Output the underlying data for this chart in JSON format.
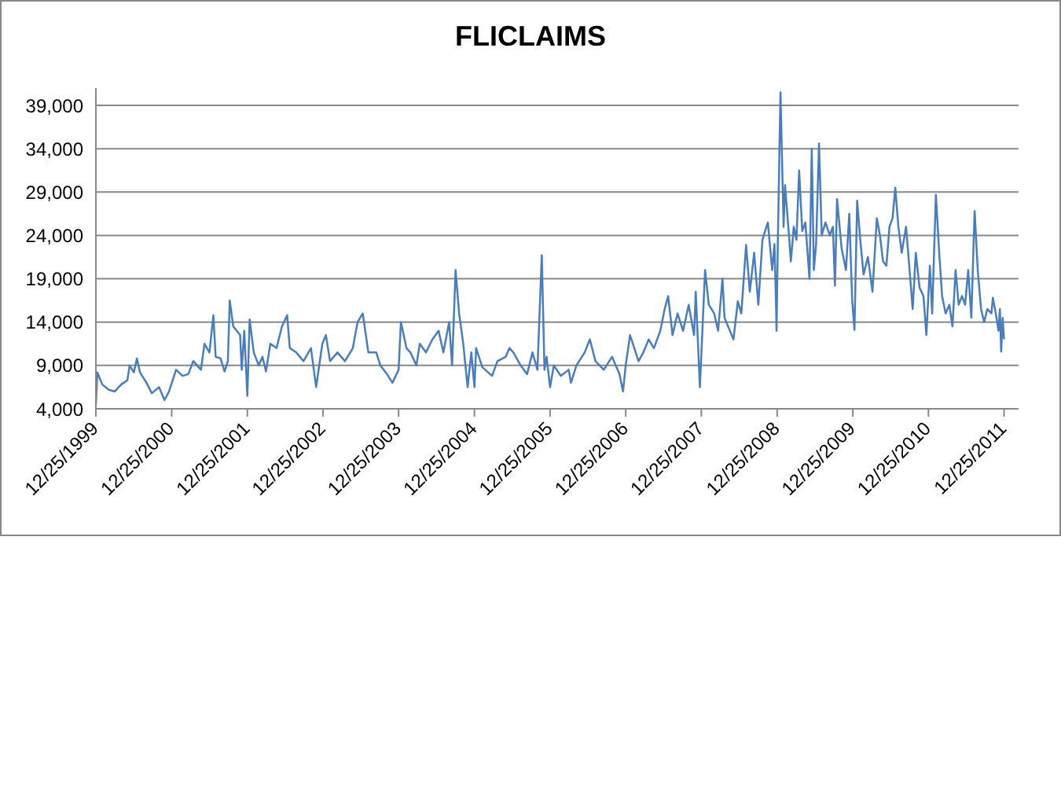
{
  "chart_data": {
    "type": "line",
    "title": "FLICLAIMS",
    "x": [
      "1999-12-25",
      "2000-01-01",
      "2000-01-25",
      "2000-02-25",
      "2000-03-25",
      "2000-04-25",
      "2000-05-25",
      "2000-06-05",
      "2000-06-25",
      "2000-07-10",
      "2000-07-25",
      "2000-08-25",
      "2000-09-20",
      "2000-10-25",
      "2000-11-20",
      "2000-12-12",
      "2001-01-15",
      "2001-02-15",
      "2001-03-15",
      "2001-04-08",
      "2001-05-15",
      "2001-06-01",
      "2001-06-25",
      "2001-07-14",
      "2001-07-25",
      "2001-08-18",
      "2001-09-06",
      "2001-09-22",
      "2001-10-01",
      "2001-10-18",
      "2001-11-20",
      "2001-11-28",
      "2001-12-10",
      "2001-12-25",
      "2002-01-05",
      "2002-01-25",
      "2002-02-18",
      "2002-03-08",
      "2002-03-25",
      "2002-04-15",
      "2002-05-15",
      "2002-06-10",
      "2002-07-05",
      "2002-07-18",
      "2002-08-18",
      "2002-09-22",
      "2002-10-28",
      "2002-11-22",
      "2002-12-22",
      "2003-01-08",
      "2003-01-28",
      "2003-03-05",
      "2003-04-10",
      "2003-05-18",
      "2003-06-10",
      "2003-07-05",
      "2003-08-01",
      "2003-09-08",
      "2003-09-28",
      "2003-10-30",
      "2003-11-25",
      "2003-12-25",
      "2004-01-05",
      "2004-02-01",
      "2004-02-20",
      "2004-03-20",
      "2004-04-05",
      "2004-05-05",
      "2004-06-05",
      "2004-07-05",
      "2004-07-28",
      "2004-08-25",
      "2004-09-08",
      "2004-09-25",
      "2004-10-12",
      "2004-11-01",
      "2004-11-22",
      "2004-12-10",
      "2004-12-25",
      "2005-01-02",
      "2005-02-01",
      "2005-03-20",
      "2005-04-15",
      "2005-05-25",
      "2005-06-12",
      "2005-07-01",
      "2005-08-05",
      "2005-09-05",
      "2005-10-01",
      "2005-10-25",
      "2005-11-15",
      "2005-11-28",
      "2005-12-08",
      "2005-12-25",
      "2006-01-12",
      "2006-02-15",
      "2006-03-25",
      "2006-04-05",
      "2006-05-01",
      "2006-06-10",
      "2006-07-05",
      "2006-08-01",
      "2006-09-10",
      "2006-10-20",
      "2006-11-25",
      "2006-12-12",
      "2006-12-25",
      "2007-01-15",
      "2007-02-25",
      "2007-03-20",
      "2007-04-15",
      "2007-05-10",
      "2007-06-10",
      "2007-07-01",
      "2007-07-18",
      "2007-08-08",
      "2007-09-01",
      "2007-09-28",
      "2007-10-25",
      "2007-11-20",
      "2007-11-28",
      "2007-12-18",
      "2008-01-12",
      "2008-01-30",
      "2008-02-25",
      "2008-03-15",
      "2008-04-05",
      "2008-04-15",
      "2008-05-28",
      "2008-06-18",
      "2008-07-05",
      "2008-07-28",
      "2008-08-15",
      "2008-09-05",
      "2008-09-25",
      "2008-10-15",
      "2008-11-10",
      "2008-12-01",
      "2008-12-12",
      "2008-12-20",
      "2008-12-22",
      "2008-12-28",
      "2009-01-10",
      "2009-01-25",
      "2009-02-01",
      "2009-02-20",
      "2009-03-01",
      "2009-03-15",
      "2009-03-28",
      "2009-04-10",
      "2009-04-25",
      "2009-05-10",
      "2009-05-30",
      "2009-06-10",
      "2009-06-20",
      "2009-07-01",
      "2009-07-15",
      "2009-07-28",
      "2009-08-15",
      "2009-09-05",
      "2009-09-20",
      "2009-09-30",
      "2009-10-10",
      "2009-11-01",
      "2009-11-22",
      "2009-12-08",
      "2009-12-22",
      "2010-01-02",
      "2010-01-15",
      "2010-01-30",
      "2010-02-15",
      "2010-03-08",
      "2010-03-30",
      "2010-04-20",
      "2010-05-05",
      "2010-05-20",
      "2010-06-05",
      "2010-06-20",
      "2010-07-05",
      "2010-07-18",
      "2010-08-02",
      "2010-08-18",
      "2010-09-08",
      "2010-09-25",
      "2010-10-10",
      "2010-10-25",
      "2010-11-12",
      "2010-12-01",
      "2010-12-15",
      "2011-01-01",
      "2011-01-12",
      "2011-01-30",
      "2011-02-15",
      "2011-03-01",
      "2011-03-18",
      "2011-04-05",
      "2011-04-20",
      "2011-05-05",
      "2011-05-20",
      "2011-06-05",
      "2011-06-20",
      "2011-07-05",
      "2011-07-20",
      "2011-08-05",
      "2011-08-20",
      "2011-09-05",
      "2011-09-20",
      "2011-10-05",
      "2011-10-25",
      "2011-11-01",
      "2011-11-15",
      "2011-11-28",
      "2011-12-05",
      "2011-12-11",
      "2011-12-18",
      "2011-12-25"
    ],
    "series": [
      {
        "color": "#4a7ebb",
        "values": [
          4500,
          8200,
          6800,
          6200,
          6000,
          6800,
          7300,
          9000,
          8200,
          9800,
          8200,
          7000,
          5800,
          6500,
          5000,
          6000,
          8500,
          7800,
          8000,
          9500,
          8500,
          11500,
          10500,
          14800,
          10000,
          9800,
          8300,
          9500,
          16500,
          13500,
          12500,
          8500,
          13000,
          5500,
          14300,
          10500,
          9000,
          10000,
          8300,
          11500,
          11000,
          13500,
          14800,
          11000,
          10500,
          9500,
          11000,
          6500,
          11500,
          12500,
          9500,
          10500,
          9500,
          11000,
          14000,
          15000,
          10500,
          10500,
          9000,
          8000,
          7000,
          8500,
          14000,
          11000,
          10500,
          9000,
          11500,
          10500,
          12000,
          13000,
          10500,
          14000,
          9000,
          20000,
          15000,
          11500,
          6500,
          10500,
          6500,
          11000,
          8800,
          7800,
          9500,
          10000,
          11000,
          10500,
          9000,
          8000,
          10500,
          8500,
          21700,
          8500,
          10000,
          6500,
          9000,
          7800,
          8500,
          7000,
          9000,
          10500,
          12000,
          9500,
          8500,
          10000,
          8000,
          6000,
          9000,
          12500,
          9500,
          10500,
          12000,
          11000,
          13000,
          15500,
          17000,
          12500,
          15000,
          13000,
          16000,
          12500,
          17500,
          6500,
          20000,
          16000,
          15000,
          13000,
          19000,
          14500,
          12000,
          16400,
          15000,
          22900,
          17500,
          22000,
          16000,
          23500,
          25500,
          20000,
          23000,
          15500,
          13000,
          23000,
          40500,
          25000,
          29800,
          24000,
          21000,
          25000,
          23500,
          31500,
          24500,
          25500,
          19000,
          34000,
          20000,
          23000,
          34600,
          24000,
          25500,
          24000,
          25000,
          18200,
          28200,
          22500,
          20000,
          26500,
          16500,
          13100,
          28000,
          23500,
          19500,
          21500,
          17500,
          26000,
          24000,
          21000,
          20500,
          25000,
          26000,
          29500,
          25000,
          22000,
          25000,
          20000,
          15500,
          22000,
          18000,
          17000,
          12500,
          20500,
          15000,
          28700,
          22000,
          17000,
          15000,
          16000,
          13500,
          20000,
          16000,
          17000,
          16000,
          20000,
          14500,
          26800,
          20000,
          15500,
          14000,
          15500,
          15000,
          16800,
          15000,
          13000,
          15500,
          10600,
          14500,
          12000
        ]
      }
    ],
    "xlim": [
      "1999-12-25",
      "2012-03-04"
    ],
    "xticks": [
      {
        "value": "1999-12-25",
        "label": "12/25/1999"
      },
      {
        "value": "2000-12-25",
        "label": "12/25/2000"
      },
      {
        "value": "2001-12-25",
        "label": "12/25/2001"
      },
      {
        "value": "2002-12-25",
        "label": "12/25/2002"
      },
      {
        "value": "2003-12-25",
        "label": "12/25/2003"
      },
      {
        "value": "2004-12-25",
        "label": "12/25/2004"
      },
      {
        "value": "2005-12-25",
        "label": "12/25/2005"
      },
      {
        "value": "2006-12-25",
        "label": "12/25/2006"
      },
      {
        "value": "2007-12-25",
        "label": "12/25/2007"
      },
      {
        "value": "2008-12-25",
        "label": "12/25/2008"
      },
      {
        "value": "2009-12-25",
        "label": "12/25/2009"
      },
      {
        "value": "2010-12-25",
        "label": "12/25/2010"
      },
      {
        "value": "2011-12-25",
        "label": "12/25/2011"
      }
    ],
    "ylim": [
      4000,
      41000
    ],
    "yticks": [
      {
        "value": 4000,
        "label": "4,000"
      },
      {
        "value": 9000,
        "label": "9,000"
      },
      {
        "value": 14000,
        "label": "14,000"
      },
      {
        "value": 19000,
        "label": "19,000"
      },
      {
        "value": 24000,
        "label": "24,000"
      },
      {
        "value": 29000,
        "label": "29,000"
      },
      {
        "value": 34000,
        "label": "34,000"
      },
      {
        "value": 39000,
        "label": "39,000"
      }
    ],
    "grid": "y",
    "legend": false,
    "marker": "none",
    "line_style": "solid"
  }
}
